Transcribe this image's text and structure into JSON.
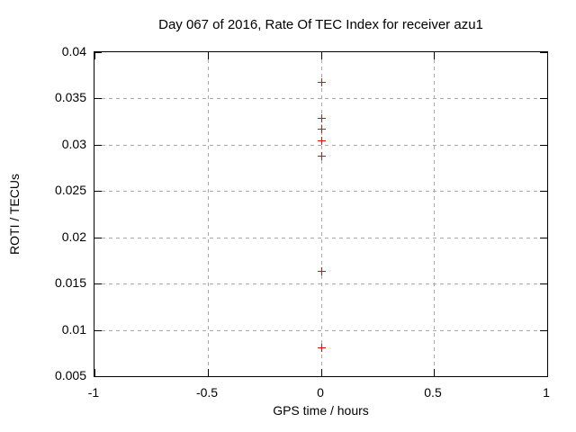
{
  "chart_data": {
    "type": "scatter",
    "title": "Day 067 of 2016, Rate Of TEC Index for receiver azu1",
    "xlabel": "GPS time / hours",
    "ylabel": "ROTI / TECUs",
    "xlim": [
      -1,
      1
    ],
    "ylim": [
      0.005,
      0.04
    ],
    "xticks": [
      -1,
      -0.5,
      0,
      0.5,
      1
    ],
    "xtick_labels": [
      "-1",
      "-0.5",
      "0",
      "0.5",
      "1"
    ],
    "yticks": [
      0.005,
      0.01,
      0.015,
      0.02,
      0.025,
      0.03,
      0.035,
      0.04
    ],
    "ytick_labels": [
      "0.005",
      "0.01",
      "0.015",
      "0.02",
      "0.025",
      "0.03",
      "0.035",
      "0.04"
    ],
    "grid": true,
    "legend": "none",
    "marker": "plus",
    "colors": {
      "marker": "#ff0000",
      "grid": "#aaaaaa",
      "frame": "#000000",
      "background": "#ffffff",
      "text": "#000000"
    },
    "series": [
      {
        "name": "ROTI",
        "x": [
          0,
          0,
          0,
          0,
          0,
          0,
          0
        ],
        "y": [
          0.0368,
          0.0329,
          0.0317,
          0.0305,
          0.0288,
          0.0164,
          0.0081
        ]
      }
    ]
  }
}
